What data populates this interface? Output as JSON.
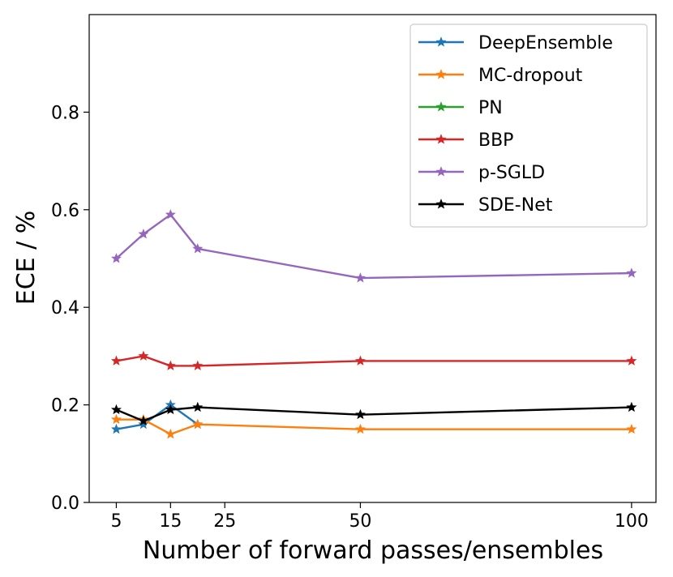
{
  "chart_data": {
    "type": "line",
    "title": "",
    "xlabel": "Number of forward passes/ensembles",
    "ylabel": "ECE / %",
    "xlim": [
      0,
      104.5
    ],
    "ylim": [
      0.0,
      1.0
    ],
    "xticks": [
      5,
      15,
      25,
      50,
      100
    ],
    "xtick_labels": [
      "5",
      "15",
      "25",
      "50",
      "100"
    ],
    "yticks": [
      0.0,
      0.2,
      0.4,
      0.6,
      0.8
    ],
    "ytick_labels": [
      "0.0",
      "0.2",
      "0.4",
      "0.6",
      "0.8"
    ],
    "grid": false,
    "legend_position": "top-right",
    "marker": "star",
    "x": [
      5,
      10,
      15,
      20,
      50,
      100
    ],
    "series": [
      {
        "name": "DeepEnsemble",
        "color": "#1f77b4",
        "values": [
          0.15,
          0.16,
          0.2,
          0.16,
          null,
          null
        ]
      },
      {
        "name": "MC-dropout",
        "color": "#ff7f0e",
        "values": [
          0.17,
          0.17,
          0.14,
          0.16,
          0.15,
          0.15
        ]
      },
      {
        "name": "PN",
        "color": "#2ca02c",
        "values": [
          null,
          null,
          null,
          null,
          null,
          null
        ]
      },
      {
        "name": "BBP",
        "color": "#d62728",
        "values": [
          0.29,
          0.3,
          0.28,
          0.28,
          0.29,
          0.29
        ]
      },
      {
        "name": "p-SGLD",
        "color": "#9467bd",
        "values": [
          0.5,
          0.55,
          0.59,
          0.52,
          0.46,
          0.47
        ]
      },
      {
        "name": "SDE-Net",
        "color": "#000000",
        "values": [
          0.19,
          0.167,
          0.19,
          0.195,
          0.18,
          0.195
        ]
      }
    ]
  }
}
